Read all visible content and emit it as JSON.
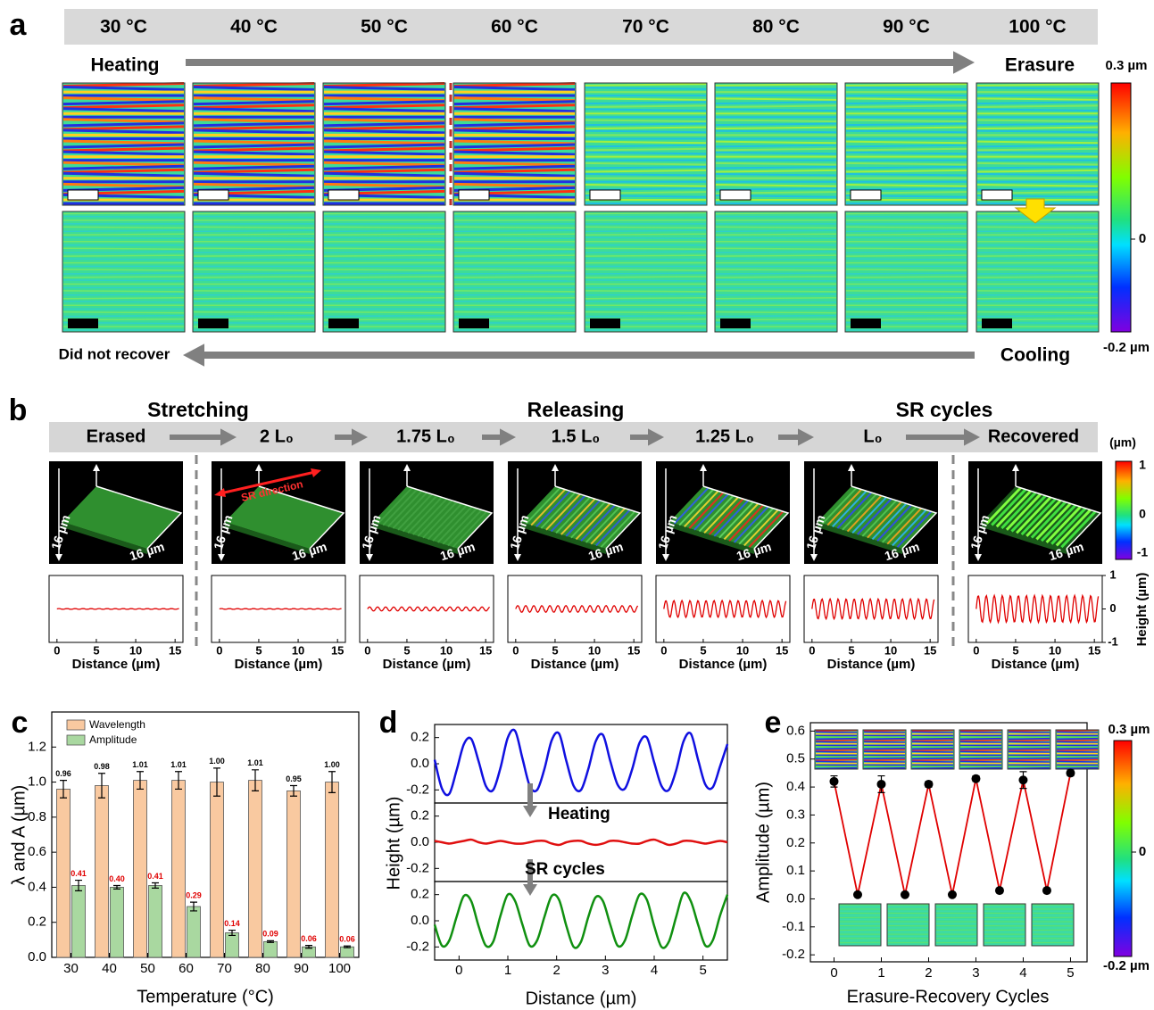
{
  "panel_a": {
    "label": "a",
    "temperatures": [
      "30 °C",
      "40 °C",
      "50 °C",
      "60 °C",
      "70 °C",
      "80 °C",
      "90 °C",
      "100 °C"
    ],
    "heating": "Heating",
    "erasure": "Erasure",
    "cooling": "Cooling",
    "not_recovered": "Did not recover",
    "colorbar": {
      "max": "0.3 µm",
      "zero": "0",
      "min": "-0.2 µm"
    }
  },
  "panel_b": {
    "label": "b",
    "stages": [
      "Stretching",
      "Releasing",
      "SR cycles"
    ],
    "steps": [
      "Erased",
      "2 L₀",
      "1.75 L₀",
      "1.5 L₀",
      "1.25 L₀",
      "L₀",
      "Recovered"
    ],
    "direction": "SR direction",
    "size": "16 µm",
    "colorbar": {
      "unit": "(µm)",
      "max": "1",
      "zero": "0",
      "min": "-1"
    },
    "profile": {
      "xlabel": "Distance (µm)",
      "ylabel": "Height (µm)",
      "xlim": [
        -1,
        16
      ],
      "xticks": [
        0,
        5,
        10,
        15
      ],
      "ylim": [
        -1,
        1
      ],
      "yticks": [
        1,
        0,
        -1
      ],
      "amplitudes": [
        0.01,
        0.01,
        0.06,
        0.1,
        0.25,
        0.3,
        0.4
      ],
      "color": "#e00000"
    }
  },
  "chart_data": [
    {
      "type": "bar",
      "label": "c",
      "categories": [
        "30",
        "40",
        "50",
        "60",
        "70",
        "80",
        "90",
        "100"
      ],
      "xlabel": "Temperature (°C)",
      "ylabel": "λ and A (µm)",
      "ylim": [
        0,
        1.4
      ],
      "yticks": [
        {
          "value": 0,
          "label": "0.0"
        },
        0.2,
        0.4,
        0.6,
        0.8,
        {
          "value": 1,
          "label": "1.0"
        },
        1.2
      ],
      "legend": "upper left",
      "series": [
        {
          "name": "Wavelength",
          "color": "#f9c9a0",
          "label_color": "#000000",
          "values": [
            0.96,
            0.98,
            1.01,
            1.01,
            1.0,
            1.01,
            0.95,
            1.0
          ],
          "errors": [
            0.05,
            0.07,
            0.05,
            0.05,
            0.08,
            0.06,
            0.03,
            0.06
          ],
          "value_labels": [
            "0.96",
            "0.98",
            "1.01",
            "1.01",
            "1.00",
            "1.01",
            "0.95",
            "1.00"
          ]
        },
        {
          "name": "Amplitude",
          "color": "#a9d8a0",
          "label_color": "#e00000",
          "values": [
            0.41,
            0.4,
            0.41,
            0.29,
            0.14,
            0.09,
            0.06,
            0.06
          ],
          "errors": [
            0.03,
            0.01,
            0.015,
            0.025,
            0.015,
            0.005,
            0.008,
            0.005
          ],
          "value_labels": [
            "0.41",
            "0.40",
            "0.41",
            "0.29",
            "0.14",
            "0.09",
            "0.06",
            "0.06"
          ]
        }
      ]
    },
    {
      "type": "line",
      "label": "d",
      "x": [
        -0.5,
        -0.35,
        -0.2,
        -0.05,
        0.1,
        0.25,
        0.4,
        0.55,
        0.7,
        0.85,
        1,
        1.15,
        1.3,
        1.45,
        1.6,
        1.75,
        1.9,
        2.05,
        2.2,
        2.35,
        2.5,
        2.65,
        2.8,
        2.95,
        3.1,
        3.25,
        3.4,
        3.55,
        3.7,
        3.85,
        4,
        4.15,
        4.3,
        4.45,
        4.6,
        4.75,
        4.9,
        5.05,
        5.2,
        5.35,
        5.5
      ],
      "xlim": [
        -0.5,
        5.5
      ],
      "xticks": [
        0,
        1,
        2,
        3,
        4,
        5
      ],
      "ylim": [
        -0.3,
        0.3
      ],
      "yticks": [
        -0.2,
        {
          "value": 0,
          "label": "0.0"
        },
        0.2
      ],
      "xlabel": "Distance (µm)",
      "ylabel": "Height (µm)",
      "annotations": [
        "Heating",
        "SR cycles"
      ],
      "series": [
        {
          "color": "#1010e0",
          "values": [
            0.03,
            -0.19,
            -0.23,
            -0.05,
            0.15,
            0.19,
            0.02,
            -0.17,
            -0.2,
            -0.03,
            0.2,
            0.25,
            0.04,
            -0.17,
            -0.2,
            -0.04,
            0.18,
            0.23,
            0.02,
            -0.17,
            -0.2,
            -0.04,
            0.17,
            0.22,
            0.02,
            -0.16,
            -0.19,
            -0.04,
            0.16,
            0.2,
            0.01,
            -0.17,
            -0.2,
            -0.05,
            0.17,
            0.23,
            0.03,
            -0.16,
            -0.18,
            -0.02,
            0.15
          ]
        },
        {
          "color": "#e01010",
          "values": [
            0.01,
            0,
            -0.01,
            0,
            0.01,
            0.02,
            0,
            -0.01,
            0,
            0.01,
            0,
            -0.01,
            -0.01,
            0,
            0.01,
            0.01,
            -0.01,
            -0.02,
            0,
            0.01,
            0.01,
            -0.01,
            -0.02,
            -0.01,
            0.01,
            0.01,
            0,
            -0.01,
            -0.01,
            0.01,
            0.02,
            0,
            -0.02,
            -0.01,
            0.01,
            0.01,
            0,
            -0.01,
            0,
            0.01,
            0
          ]
        },
        {
          "color": "#109010",
          "values": [
            -0.03,
            -0.19,
            -0.15,
            0.03,
            0.19,
            0.15,
            -0.04,
            -0.19,
            -0.16,
            0.04,
            0.2,
            0.15,
            -0.03,
            -0.19,
            -0.15,
            0.03,
            0.19,
            0.16,
            -0.04,
            -0.2,
            -0.16,
            0.03,
            0.18,
            0.15,
            -0.03,
            -0.19,
            -0.15,
            0.04,
            0.2,
            0.16,
            -0.04,
            -0.2,
            -0.16,
            0.03,
            0.21,
            0.15,
            -0.03,
            -0.19,
            -0.15,
            0.04,
            0.2
          ]
        }
      ]
    },
    {
      "type": "errorbar",
      "label": "e",
      "x": [
        0,
        0.5,
        1,
        1.5,
        2,
        2.5,
        3,
        3.5,
        4,
        4.5,
        5
      ],
      "values": [
        0.42,
        0.015,
        0.41,
        0.015,
        0.41,
        0.015,
        0.43,
        0.03,
        0.425,
        0.03,
        0.45
      ],
      "errors": [
        0.02,
        0.003,
        0.03,
        0.003,
        0.01,
        0.003,
        0.01,
        0.003,
        0.03,
        0.003,
        0.01
      ],
      "color": "#e00000",
      "marker_color": "#000000",
      "xlim": [
        -0.5,
        5.35
      ],
      "xticks": [
        0,
        1,
        2,
        3,
        4,
        5
      ],
      "ylim": [
        -0.225,
        0.63
      ],
      "yticks": [
        -0.2,
        -0.1,
        {
          "value": 0,
          "label": "0.0"
        },
        0.1,
        0.2,
        0.3,
        0.4,
        0.5,
        0.6
      ],
      "xlabel": "Erasure-Recovery Cycles",
      "ylabel": "Amplitude (µm)",
      "colorbar": {
        "max": "0.3 µm",
        "zero": "0",
        "min": "-0.2 µm"
      }
    }
  ]
}
